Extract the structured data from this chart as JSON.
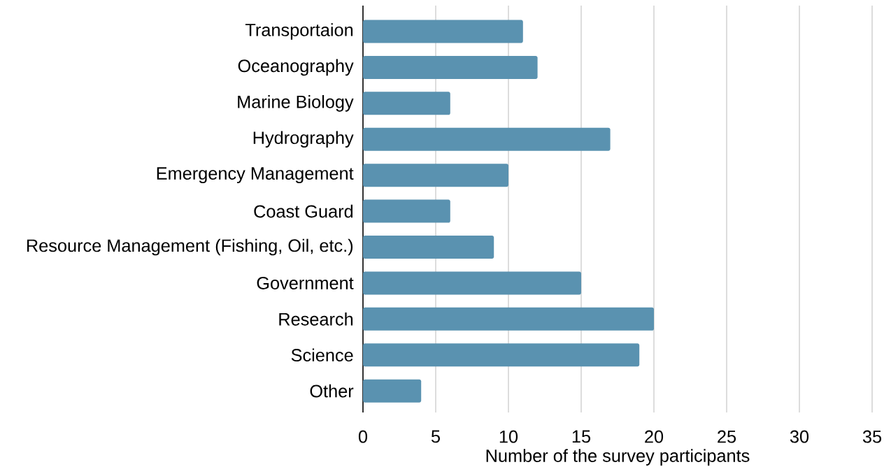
{
  "chart_data": {
    "type": "bar",
    "orientation": "horizontal",
    "categories": [
      "Transportaion",
      "Oceanography",
      "Marine Biology",
      "Hydrography",
      "Emergency Management",
      "Coast Guard",
      "Resource Management (Fishing, Oil, etc.)",
      "Government",
      "Research",
      "Science",
      "Other"
    ],
    "values": [
      11,
      12,
      6,
      17,
      10,
      6,
      9,
      15,
      20,
      19,
      4
    ],
    "color": "#5a92b0",
    "xlabel": "Number of the survey participants",
    "xlim": [
      0,
      35
    ],
    "xticks": [
      0,
      5,
      10,
      15,
      20,
      25,
      30,
      35
    ],
    "grid": "x"
  }
}
